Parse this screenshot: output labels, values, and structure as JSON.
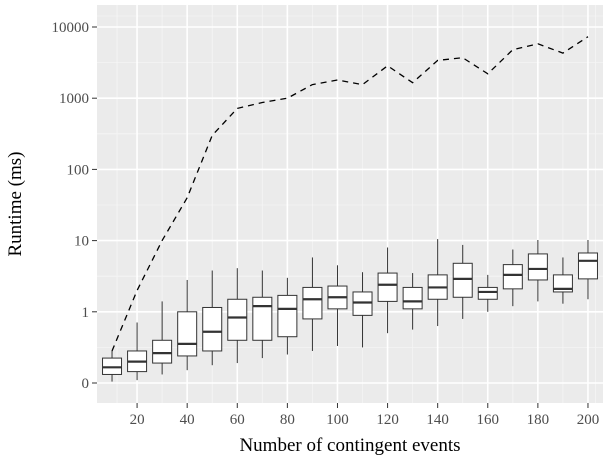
{
  "chart_data": {
    "type": "box",
    "xlabel": "Number of contingent events",
    "ylabel": "Runtime (ms)",
    "x_ticks": [
      20,
      40,
      60,
      80,
      100,
      120,
      140,
      160,
      180,
      200
    ],
    "y_ticks": [
      0,
      1,
      10,
      100,
      1000,
      10000
    ],
    "y_tick_labels": [
      "0",
      "1",
      "10",
      "100",
      "1000",
      "10000"
    ],
    "xlim": [
      4,
      206
    ],
    "y_scale": "log",
    "grid": true,
    "panel_background": "#ebebeb",
    "box_series": {
      "x": [
        10,
        20,
        30,
        40,
        50,
        60,
        70,
        80,
        90,
        100,
        110,
        120,
        130,
        140,
        150,
        160,
        170,
        180,
        190,
        200
      ],
      "min": [
        0.02,
        0.04,
        0.12,
        0.18,
        0.25,
        0.28,
        0.35,
        0.4,
        0.45,
        0.52,
        0.5,
        0.7,
        0.75,
        0.8,
        0.9,
        1.0,
        1.2,
        1.4,
        1.3,
        1.5
      ],
      "q1": [
        0.12,
        0.16,
        0.28,
        0.38,
        0.45,
        0.6,
        0.6,
        0.65,
        0.9,
        1.1,
        0.95,
        1.4,
        1.1,
        1.5,
        1.6,
        1.5,
        2.1,
        2.8,
        1.9,
        2.9
      ],
      "median": [
        0.22,
        0.3,
        0.42,
        0.55,
        0.72,
        0.92,
        1.2,
        1.1,
        1.5,
        1.6,
        1.35,
        2.4,
        1.4,
        2.2,
        2.9,
        1.9,
        3.3,
        4.0,
        2.1,
        5.2
      ],
      "q3": [
        0.35,
        0.45,
        0.6,
        1.0,
        1.15,
        1.5,
        1.6,
        1.7,
        2.2,
        2.3,
        1.9,
        3.5,
        2.2,
        3.3,
        4.8,
        2.2,
        4.6,
        6.5,
        3.3,
        6.7
      ],
      "max": [
        0.45,
        0.85,
        1.4,
        2.8,
        3.8,
        4.1,
        3.8,
        3.0,
        5.8,
        4.5,
        3.6,
        8.0,
        3.5,
        10.5,
        8.7,
        3.3,
        7.5,
        10.2,
        5.8,
        10.2
      ]
    },
    "dashed_series": {
      "x": [
        10,
        20,
        30,
        40,
        50,
        60,
        70,
        80,
        90,
        100,
        110,
        120,
        130,
        140,
        150,
        160,
        170,
        180,
        190,
        200
      ],
      "values": [
        0.45,
        2.0,
        10,
        40,
        300,
        720,
        870,
        1000,
        1550,
        1800,
        1550,
        2850,
        1650,
        3400,
        3700,
        2200,
        4800,
        5800,
        4300,
        7300
      ]
    }
  }
}
